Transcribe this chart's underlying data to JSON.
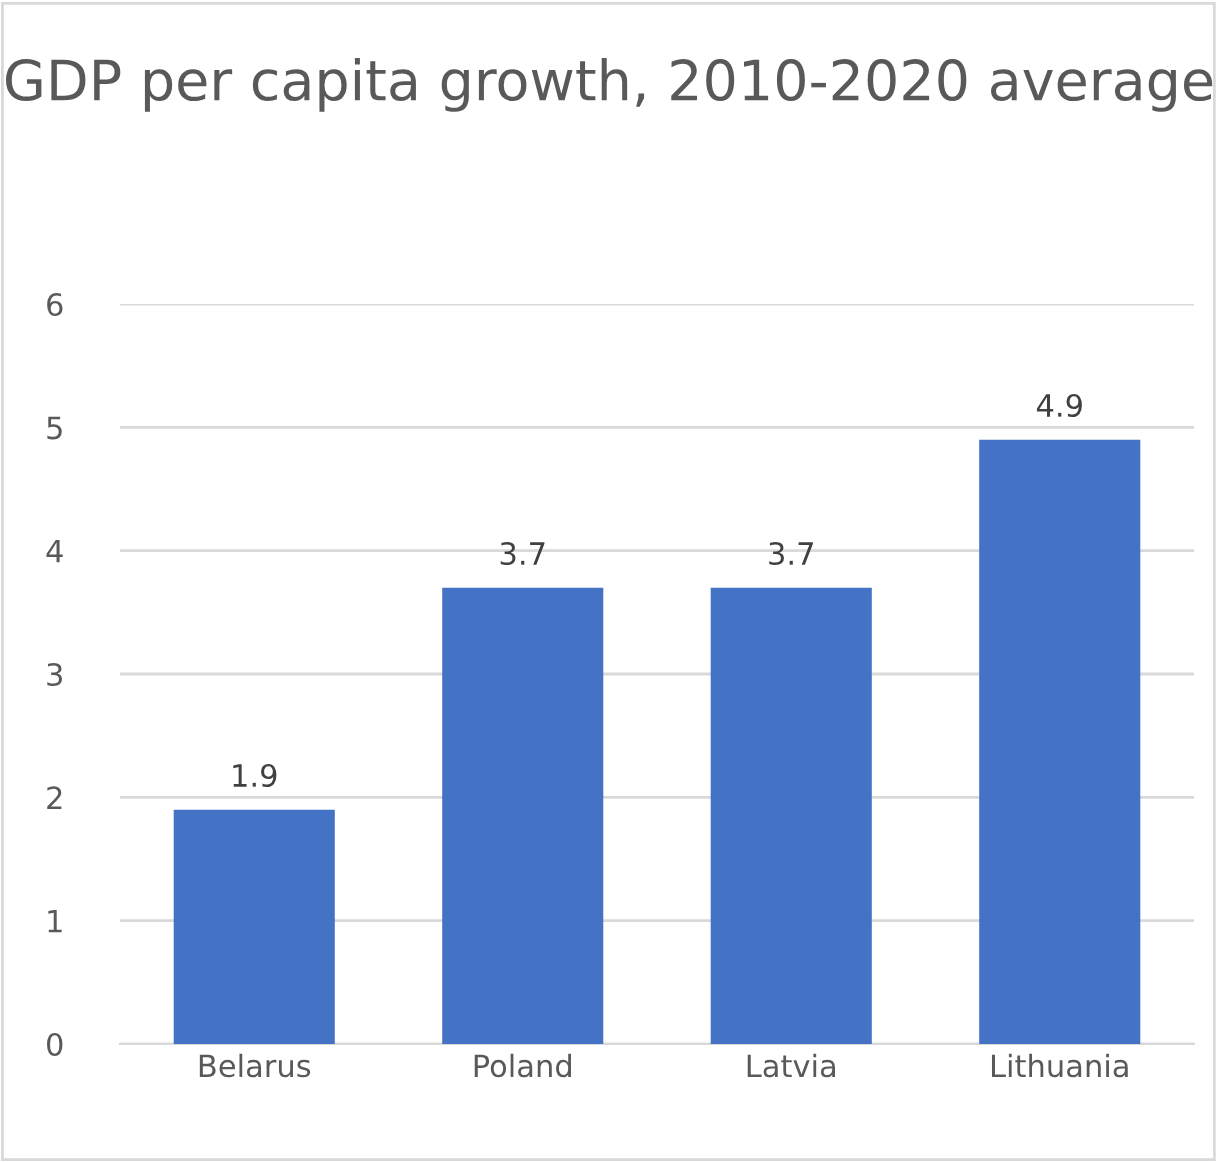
{
  "chart_data": {
    "type": "bar",
    "title": "GDP per capita growth, 2010-2020 average",
    "categories": [
      "Belarus",
      "Poland",
      "Latvia",
      "Lithuania"
    ],
    "values": [
      1.9,
      3.7,
      3.7,
      4.9
    ],
    "color": "#4472c4",
    "ylim": [
      0,
      6
    ],
    "yticks": [
      0,
      1,
      2,
      3,
      4,
      5,
      6
    ],
    "grid": "y",
    "data_labels": true
  }
}
